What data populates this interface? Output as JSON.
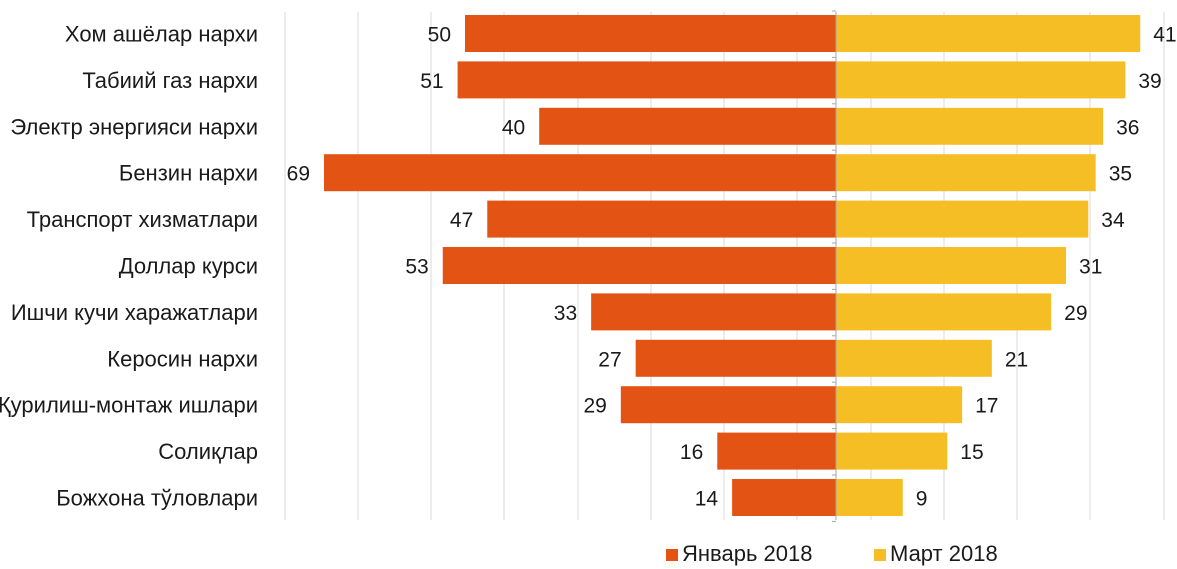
{
  "chart_data": {
    "type": "bar",
    "orientation": "horizontal-diverging",
    "categories": [
      "Хом ашёлар  нархи",
      "Табиий газ нархи",
      "Электр энергияси нархи",
      "Бензин нархи",
      "Транспорт  хизматлари",
      "Доллар курси",
      "Ишчи кучи харажатлари",
      "Керосин нархи",
      "Қурилиш-монтаж ишлари",
      "Солиқлар",
      "Божхона тўловлари"
    ],
    "series": [
      {
        "name": "Январь 2018",
        "color": "#e35314",
        "side": "left",
        "values": [
          50,
          51,
          40,
          69,
          47,
          53,
          33,
          27,
          29,
          16,
          14
        ]
      },
      {
        "name": "Март 2018",
        "color": "#f6be25",
        "side": "right",
        "values": [
          41,
          39,
          36,
          35,
          34,
          31,
          29,
          21,
          17,
          15,
          9
        ]
      }
    ],
    "grid": true,
    "legend_position": "bottom"
  }
}
